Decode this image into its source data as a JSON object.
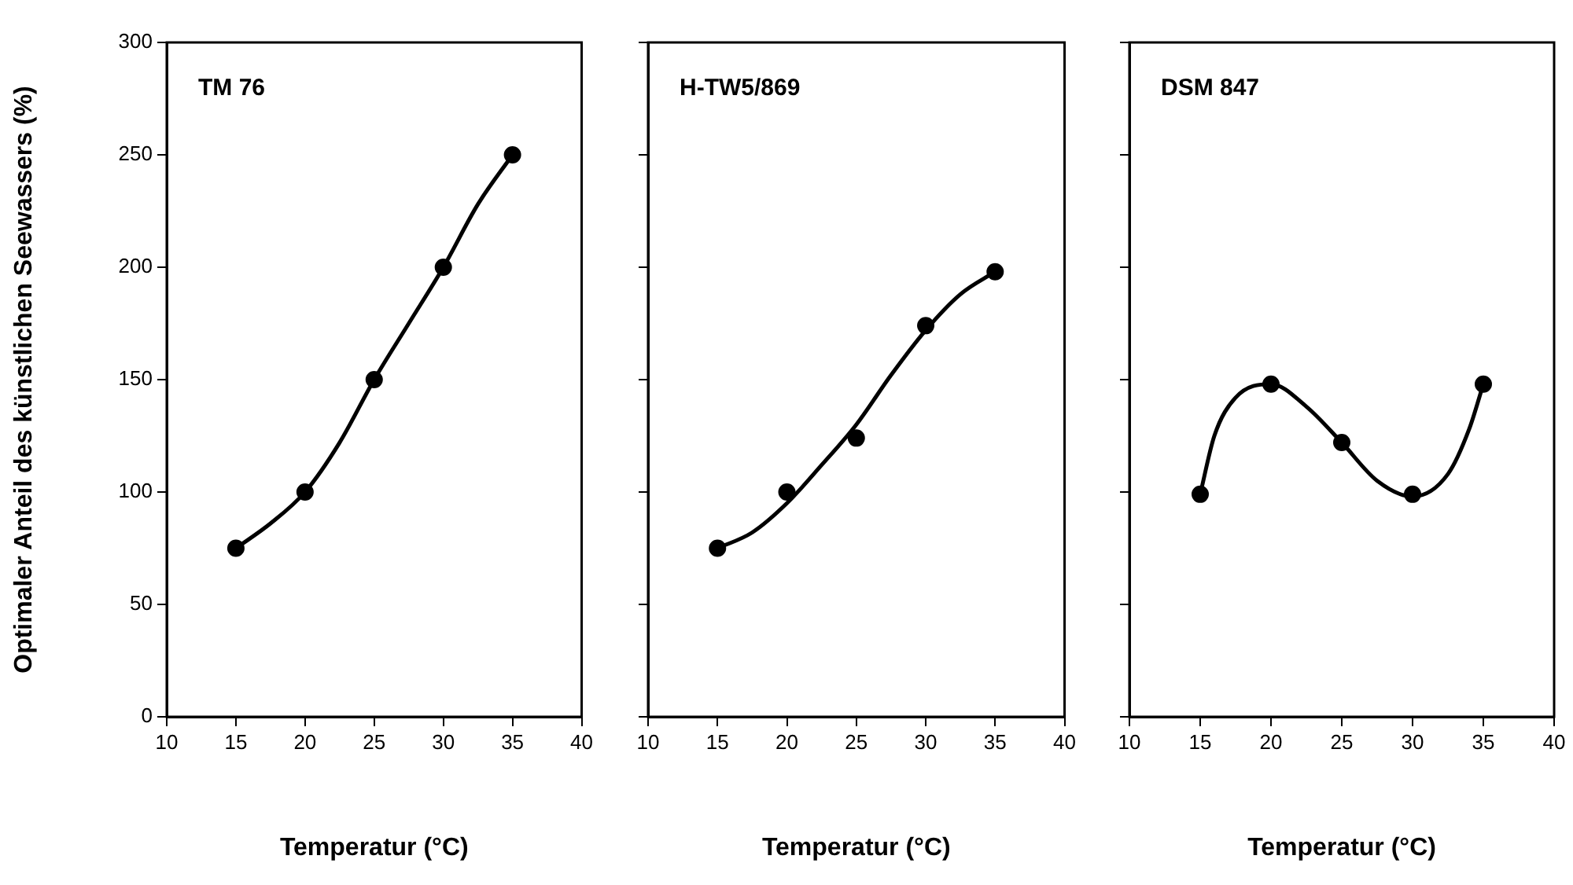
{
  "chart_data": [
    {
      "type": "scatter",
      "title": "TM 76",
      "xlabel": "Temperatur (°C)",
      "ylabel": "Optimaler Anteil des künstlichen Seewassers (%)",
      "xlim": [
        10,
        40
      ],
      "xticks": [
        10,
        15,
        20,
        25,
        30,
        35,
        40
      ],
      "ylim": [
        0,
        300
      ],
      "yticks": [
        0,
        50,
        100,
        150,
        200,
        250,
        300
      ],
      "series": [
        {
          "x": [
            15,
            20,
            25,
            30,
            35
          ],
          "values": [
            75,
            100,
            150,
            200,
            250
          ],
          "color": "#000000",
          "marker": "circle"
        },
        {
          "type": "line",
          "x": [
            15,
            17.5,
            20,
            22.5,
            25,
            27.5,
            30,
            32.5,
            35
          ],
          "values": [
            75,
            86,
            100,
            122,
            150,
            175,
            200,
            228,
            250
          ],
          "color": "#000000",
          "marker": "none"
        }
      ]
    },
    {
      "type": "scatter",
      "title": "H-TW5/869",
      "xlabel": "Temperatur (°C)",
      "xlim": [
        10,
        40
      ],
      "xticks": [
        10,
        15,
        20,
        25,
        30,
        35,
        40
      ],
      "ylim": [
        0,
        300
      ],
      "yticks": [
        0,
        50,
        100,
        150,
        200,
        250,
        300
      ],
      "tick_labels": "x",
      "series": [
        {
          "x": [
            15,
            20,
            25,
            30,
            35
          ],
          "values": [
            75,
            100,
            124,
            174,
            198
          ],
          "color": "#000000",
          "marker": "circle"
        },
        {
          "type": "line",
          "x": [
            15,
            17.5,
            20,
            22.5,
            25,
            27.5,
            30,
            32.5,
            35
          ],
          "values": [
            75,
            82,
            95,
            112,
            130,
            152,
            172,
            188,
            198
          ],
          "color": "#000000",
          "marker": "none"
        }
      ]
    },
    {
      "type": "scatter",
      "title": "DSM 847",
      "xlabel": "Temperatur (°C)",
      "xlim": [
        10,
        40
      ],
      "xticks": [
        10,
        15,
        20,
        25,
        30,
        35,
        40
      ],
      "ylim": [
        0,
        300
      ],
      "yticks": [
        0,
        50,
        100,
        150,
        200,
        250,
        300
      ],
      "tick_labels": "x",
      "series": [
        {
          "x": [
            15,
            20,
            25,
            30,
            35
          ],
          "values": [
            99,
            148,
            122,
            99,
            148
          ],
          "color": "#000000",
          "marker": "circle"
        },
        {
          "type": "line",
          "x": [
            15,
            16,
            17.5,
            20,
            22.5,
            25,
            27.5,
            30,
            32.5,
            34,
            35
          ],
          "values": [
            99,
            125,
            142,
            148,
            138,
            122,
            105,
            98,
            108,
            128,
            148
          ],
          "color": "#000000",
          "marker": "none"
        }
      ]
    }
  ]
}
